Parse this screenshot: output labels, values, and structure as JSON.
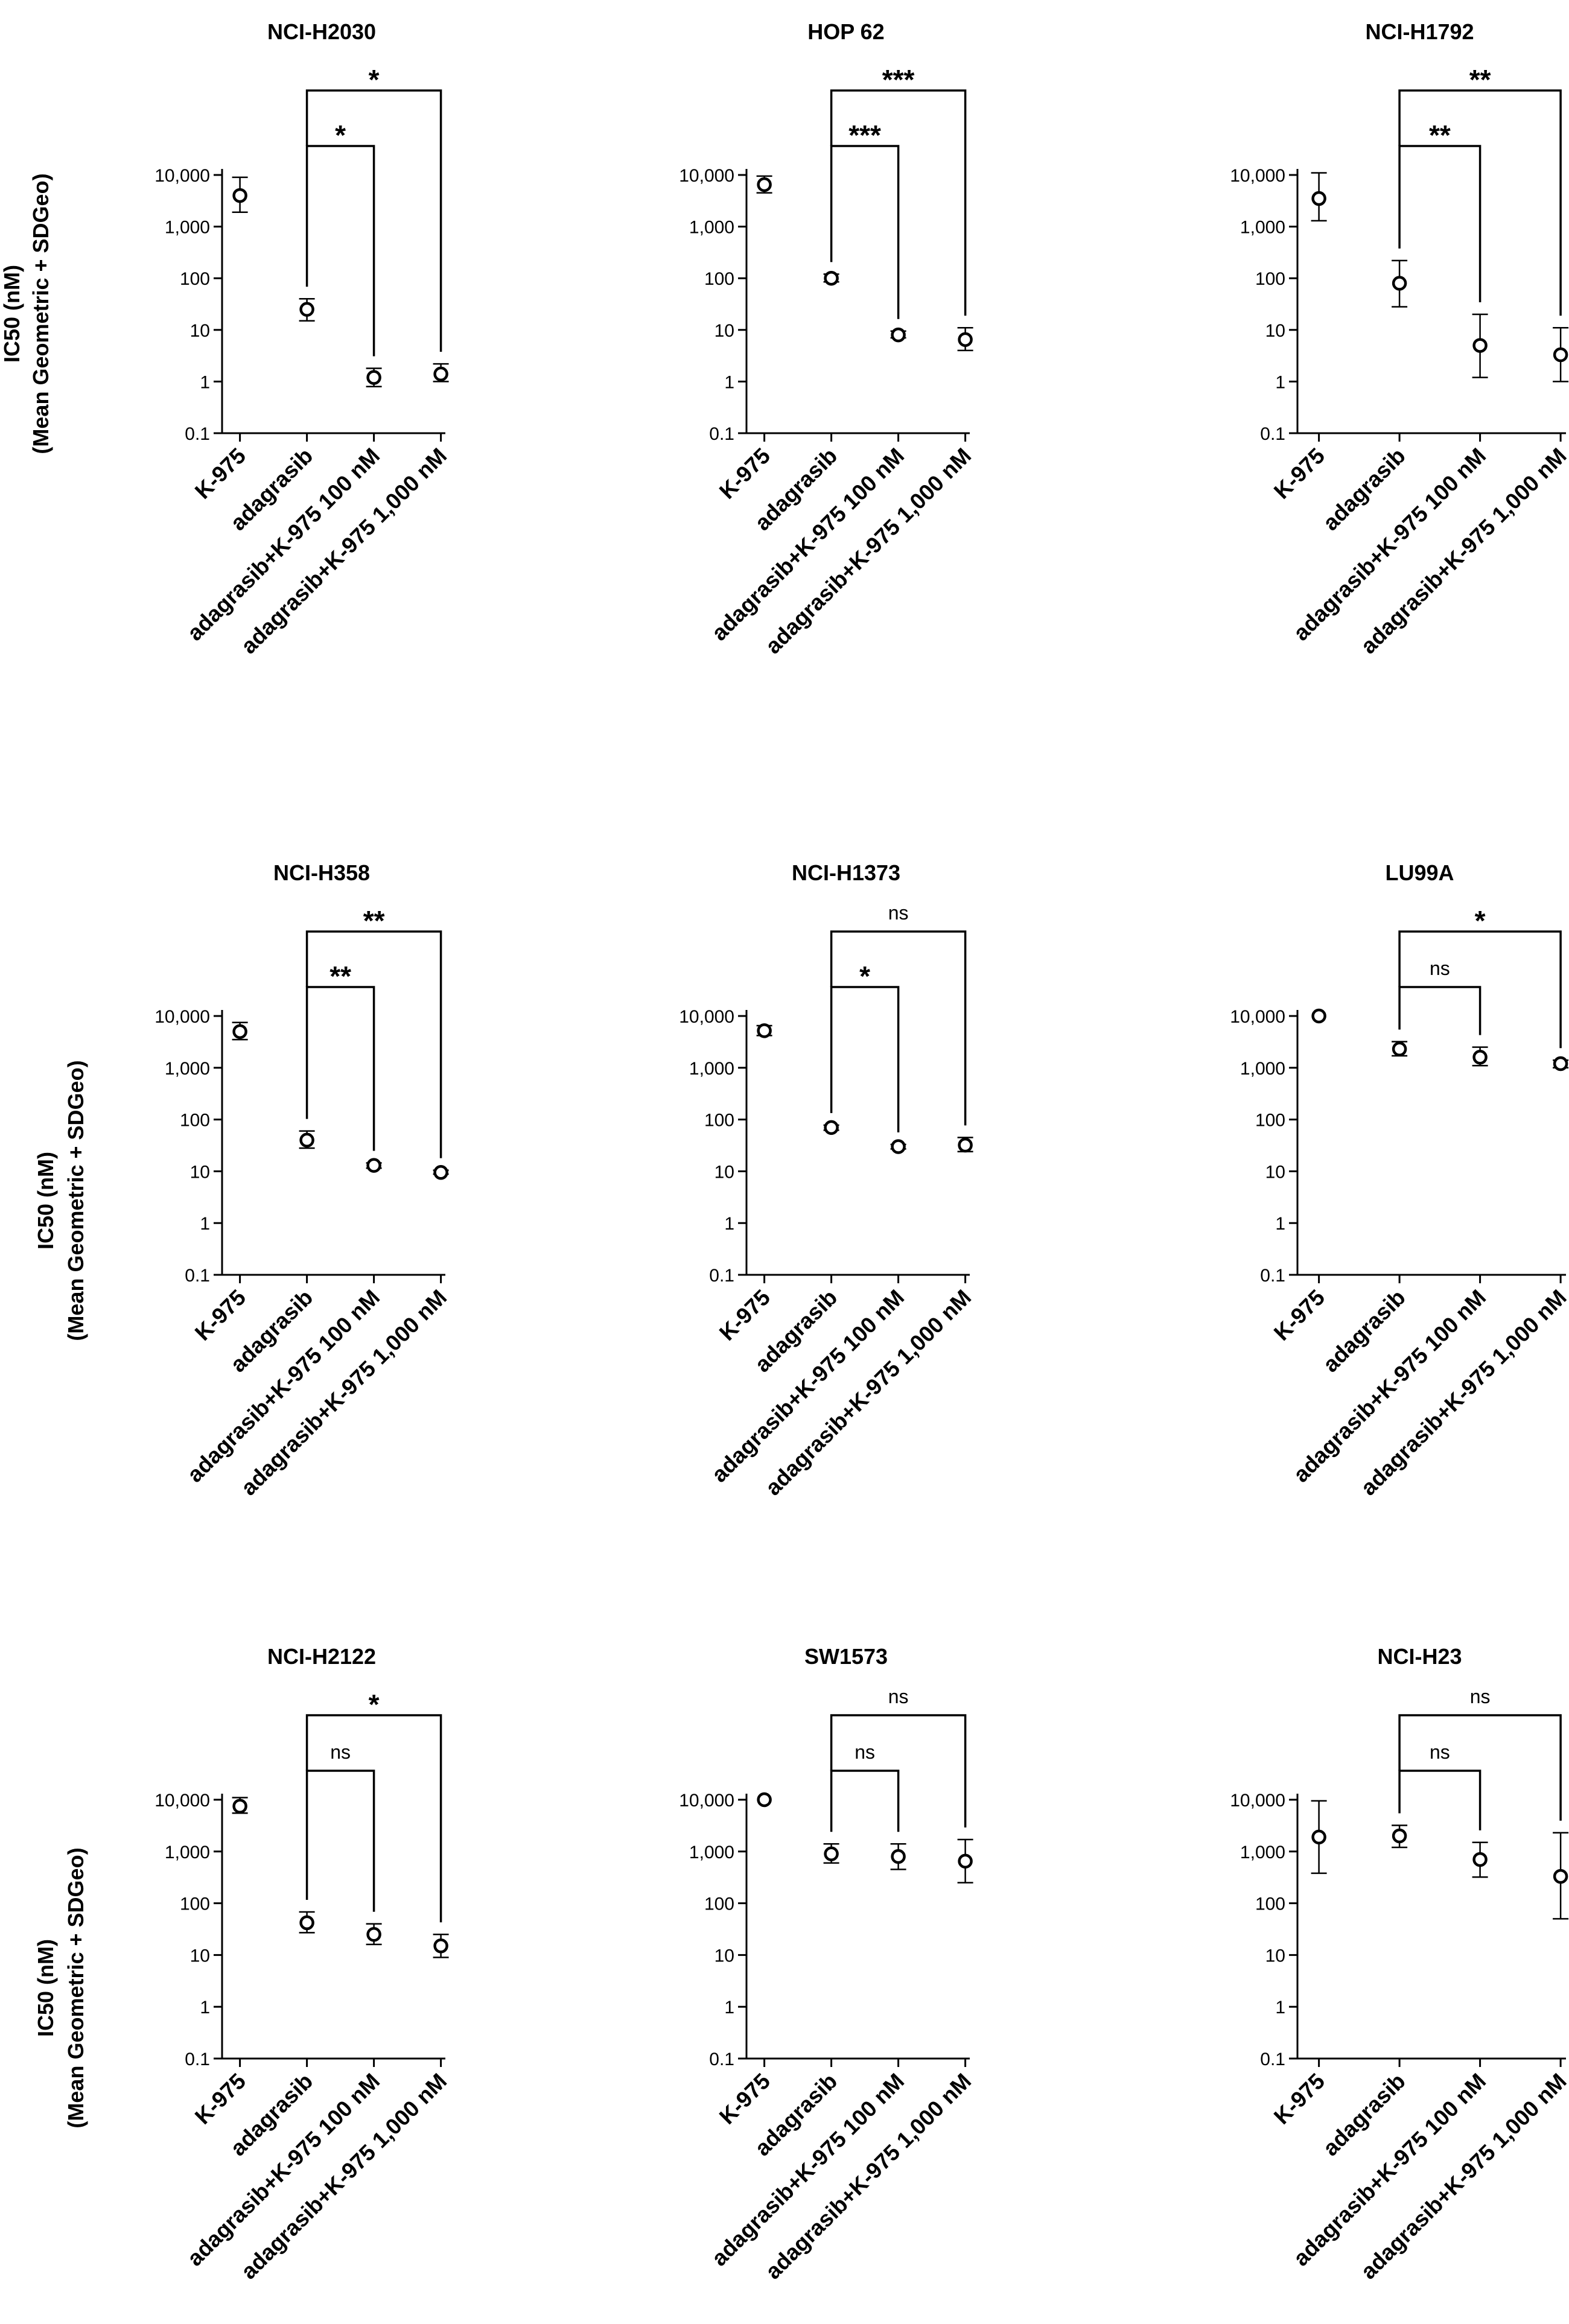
{
  "figure": {
    "ylabel_line1": "IC50 (nM)",
    "ylabel_line2": "(Mean Geometric + SDGeo)",
    "yticks": [
      {
        "value": 0.1,
        "label": "0.1"
      },
      {
        "value": 1,
        "label": "1"
      },
      {
        "value": 10,
        "label": "10"
      },
      {
        "value": 100,
        "label": "100"
      },
      {
        "value": 1000,
        "label": "1,000"
      },
      {
        "value": 10000,
        "label": "10,000"
      }
    ],
    "categories": [
      "K-975",
      "adagrasib",
      "adagrasib+K-975 100 nM",
      "adagrasib+K-975 1,000 nM"
    ]
  },
  "chart_data": [
    {
      "type": "scatter",
      "title": "NCI-H2030",
      "yscale": "log",
      "ylim": [
        0.1,
        10000
      ],
      "categories": [
        "K-975",
        "adagrasib",
        "adagrasib+K-975 100 nM",
        "adagrasib+K-975 1,000 nM"
      ],
      "values": [
        4000,
        25,
        1.2,
        1.4
      ],
      "error_low": [
        1900,
        15,
        0.8,
        1.0
      ],
      "error_high": [
        9000,
        40,
        1.8,
        2.2
      ],
      "comparisons": [
        {
          "from": 1,
          "to": 2,
          "label": "*"
        },
        {
          "from": 1,
          "to": 3,
          "label": "*"
        }
      ]
    },
    {
      "type": "scatter",
      "title": "HOP 62",
      "yscale": "log",
      "ylim": [
        0.1,
        10000
      ],
      "categories": [
        "K-975",
        "adagrasib",
        "adagrasib+K-975 100 nM",
        "adagrasib+K-975 1,000 nM"
      ],
      "values": [
        6500,
        100,
        8,
        6.5
      ],
      "error_low": [
        4500,
        85,
        7,
        4.0
      ],
      "error_high": [
        9500,
        120,
        9.5,
        11
      ],
      "comparisons": [
        {
          "from": 1,
          "to": 2,
          "label": "***"
        },
        {
          "from": 1,
          "to": 3,
          "label": "***"
        }
      ]
    },
    {
      "type": "scatter",
      "title": "NCI-H1792",
      "yscale": "log",
      "ylim": [
        0.1,
        10000
      ],
      "categories": [
        "K-975",
        "adagrasib",
        "adagrasib+K-975 100 nM",
        "adagrasib+K-975 1,000 nM"
      ],
      "values": [
        3500,
        80,
        5,
        3.3
      ],
      "error_low": [
        1300,
        28,
        1.2,
        1.0
      ],
      "error_high": [
        11000,
        220,
        20,
        11
      ],
      "comparisons": [
        {
          "from": 1,
          "to": 2,
          "label": "**"
        },
        {
          "from": 1,
          "to": 3,
          "label": "**"
        }
      ]
    },
    {
      "type": "scatter",
      "title": "NCI-H358",
      "yscale": "log",
      "ylim": [
        0.1,
        10000
      ],
      "categories": [
        "K-975",
        "adagrasib",
        "adagrasib+K-975 100 nM",
        "adagrasib+K-975 1,000 nM"
      ],
      "values": [
        5000,
        40,
        13,
        9.5
      ],
      "error_low": [
        3500,
        28,
        11.5,
        8.8
      ],
      "error_high": [
        7500,
        60,
        14.5,
        10.5
      ],
      "comparisons": [
        {
          "from": 1,
          "to": 2,
          "label": "**"
        },
        {
          "from": 1,
          "to": 3,
          "label": "**"
        }
      ]
    },
    {
      "type": "scatter",
      "title": "NCI-H1373",
      "yscale": "log",
      "ylim": [
        0.1,
        10000
      ],
      "categories": [
        "K-975",
        "adagrasib",
        "adagrasib+K-975 100 nM",
        "adagrasib+K-975 1,000 nM"
      ],
      "values": [
        5200,
        70,
        30,
        32
      ],
      "error_low": [
        4200,
        62,
        27,
        24
      ],
      "error_high": [
        6500,
        78,
        33,
        45
      ],
      "comparisons": [
        {
          "from": 1,
          "to": 2,
          "label": "*"
        },
        {
          "from": 1,
          "to": 3,
          "label": "ns"
        }
      ]
    },
    {
      "type": "scatter",
      "title": "LU99A",
      "yscale": "log",
      "ylim": [
        0.1,
        10000
      ],
      "categories": [
        "K-975",
        "adagrasib",
        "adagrasib+K-975 100 nM",
        "adagrasib+K-975 1,000 nM"
      ],
      "values": [
        10000,
        2300,
        1600,
        1200
      ],
      "error_low": [
        10000,
        1700,
        1100,
        1000
      ],
      "error_high": [
        10000,
        3200,
        2500,
        1400
      ],
      "comparisons": [
        {
          "from": 1,
          "to": 2,
          "label": "ns"
        },
        {
          "from": 1,
          "to": 3,
          "label": "*"
        }
      ]
    },
    {
      "type": "scatter",
      "title": "NCI-H2122",
      "yscale": "log",
      "ylim": [
        0.1,
        10000
      ],
      "categories": [
        "K-975",
        "adagrasib",
        "adagrasib+K-975 100 nM",
        "adagrasib+K-975 1,000 nM"
      ],
      "values": [
        7500,
        42,
        25,
        15
      ],
      "error_low": [
        5500,
        27,
        16,
        9
      ],
      "error_high": [
        11000,
        68,
        40,
        25
      ],
      "comparisons": [
        {
          "from": 1,
          "to": 2,
          "label": "ns"
        },
        {
          "from": 1,
          "to": 3,
          "label": "*"
        }
      ]
    },
    {
      "type": "scatter",
      "title": "SW1573",
      "yscale": "log",
      "ylim": [
        0.1,
        10000
      ],
      "categories": [
        "K-975",
        "adagrasib",
        "adagrasib+K-975 100 nM",
        "adagrasib+K-975 1,000 nM"
      ],
      "values": [
        10000,
        900,
        800,
        650
      ],
      "error_low": [
        10000,
        600,
        450,
        250
      ],
      "error_high": [
        10000,
        1400,
        1400,
        1700
      ],
      "comparisons": [
        {
          "from": 1,
          "to": 2,
          "label": "ns"
        },
        {
          "from": 1,
          "to": 3,
          "label": "ns"
        }
      ]
    },
    {
      "type": "scatter",
      "title": "NCI-H23",
      "yscale": "log",
      "ylim": [
        0.1,
        10000
      ],
      "categories": [
        "K-975",
        "adagrasib",
        "adagrasib+K-975 100 nM",
        "adagrasib+K-975 1,000 nM"
      ],
      "values": [
        1900,
        2000,
        700,
        330
      ],
      "error_low": [
        380,
        1200,
        320,
        50
      ],
      "error_high": [
        9500,
        3200,
        1500,
        2300
      ],
      "comparisons": [
        {
          "from": 1,
          "to": 2,
          "label": "ns"
        },
        {
          "from": 1,
          "to": 3,
          "label": "ns"
        }
      ]
    }
  ]
}
